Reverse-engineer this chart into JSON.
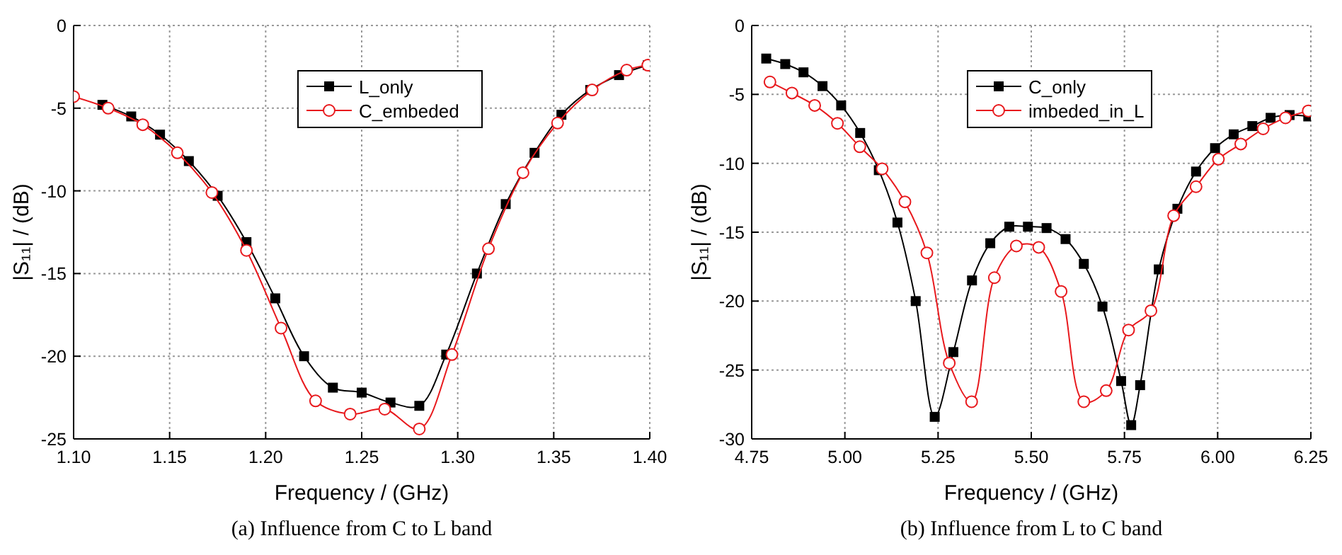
{
  "chart_data": [
    {
      "type": "line",
      "xlabel": "Frequency / (GHz)",
      "ylabel": "|S₁₁| / (dB)",
      "annotations": [
        "(a) Influence from C to L band"
      ],
      "xlim": [
        1.1,
        1.4
      ],
      "ylim": [
        -25,
        0
      ],
      "xticks": [
        {
          "value": 1.1,
          "label": "1.10"
        },
        {
          "value": 1.15,
          "label": "1.15"
        },
        {
          "value": 1.2,
          "label": "1.20"
        },
        {
          "value": 1.25,
          "label": "1.25"
        },
        {
          "value": 1.3,
          "label": "1.30"
        },
        {
          "value": 1.35,
          "label": "1.35"
        },
        {
          "value": 1.4,
          "label": "1.40"
        }
      ],
      "yticks": [
        -25,
        -20,
        -15,
        -10,
        -5,
        0
      ],
      "grid": true,
      "legend": "top",
      "line_style": "solid",
      "series": [
        {
          "name": "L_only",
          "color": "#000000",
          "marker": "square",
          "x": [
            1.115,
            1.13,
            1.145,
            1.16,
            1.175,
            1.19,
            1.205,
            1.22,
            1.235,
            1.25,
            1.265,
            1.28,
            1.294,
            1.31,
            1.325,
            1.34,
            1.354,
            1.369,
            1.384,
            1.399
          ],
          "values": [
            -4.8,
            -5.5,
            -6.6,
            -8.2,
            -10.3,
            -13.1,
            -16.5,
            -20.0,
            -21.9,
            -22.2,
            -22.8,
            -23.0,
            -19.9,
            -15.0,
            -10.8,
            -7.7,
            -5.4,
            -3.9,
            -3.0,
            -2.4
          ]
        },
        {
          "name": "C_embeded",
          "color": "#e8191d",
          "marker": "circle",
          "x": [
            1.1,
            1.118,
            1.136,
            1.154,
            1.172,
            1.19,
            1.208,
            1.226,
            1.244,
            1.262,
            1.28,
            1.297,
            1.316,
            1.334,
            1.352,
            1.37,
            1.388,
            1.399
          ],
          "values": [
            -4.3,
            -5.0,
            -6.0,
            -7.7,
            -10.1,
            -13.6,
            -18.3,
            -22.7,
            -23.5,
            -23.2,
            -24.4,
            -19.9,
            -13.5,
            -8.9,
            -5.9,
            -3.9,
            -2.7,
            -2.4
          ]
        }
      ]
    },
    {
      "type": "line",
      "xlabel": "Frequency / (GHz)",
      "ylabel": "|S₁₁| / (dB)",
      "annotations": [
        "(b) Influence from L to C band"
      ],
      "xlim": [
        4.75,
        6.25
      ],
      "ylim": [
        -30,
        0
      ],
      "xticks": [
        {
          "value": 4.75,
          "label": "4.75"
        },
        {
          "value": 5,
          "label": "5.00"
        },
        {
          "value": 5.25,
          "label": "5.25"
        },
        {
          "value": 5.5,
          "label": "5.50"
        },
        {
          "value": 5.75,
          "label": "5.75"
        },
        {
          "value": 6,
          "label": "6.00"
        },
        {
          "value": 6.25,
          "label": "6.25"
        }
      ],
      "yticks": [
        -30,
        -25,
        -20,
        -15,
        -10,
        -5,
        0
      ],
      "grid": true,
      "legend": "top",
      "line_style": "solid",
      "series": [
        {
          "name": "C_only",
          "color": "#000000",
          "marker": "square",
          "x": [
            4.789,
            4.84,
            4.889,
            4.94,
            4.99,
            5.041,
            5.091,
            5.141,
            5.19,
            5.241,
            5.291,
            5.341,
            5.39,
            5.441,
            5.491,
            5.541,
            5.592,
            5.641,
            5.691,
            5.741,
            5.768,
            5.792,
            5.842,
            5.892,
            5.942,
            5.993,
            6.043,
            6.093,
            6.142,
            6.193,
            6.243
          ],
          "values": [
            -2.4,
            -2.8,
            -3.4,
            -4.4,
            -5.8,
            -7.8,
            -10.5,
            -14.3,
            -20.0,
            -28.4,
            -23.7,
            -18.5,
            -15.8,
            -14.6,
            -14.6,
            -14.7,
            -15.5,
            -17.3,
            -20.4,
            -25.8,
            -29.0,
            -26.1,
            -17.7,
            -13.3,
            -10.6,
            -8.9,
            -7.9,
            -7.3,
            -6.7,
            -6.5,
            -6.6
          ]
        },
        {
          "name": "imbeded_in_L",
          "color": "#e8191d",
          "marker": "circle",
          "x": [
            4.799,
            4.858,
            4.919,
            4.98,
            5.04,
            5.1,
            5.161,
            5.22,
            5.28,
            5.34,
            5.401,
            5.46,
            5.52,
            5.58,
            5.641,
            5.701,
            5.761,
            5.821,
            5.882,
            5.942,
            6.002,
            6.062,
            6.122,
            6.182,
            6.243
          ],
          "values": [
            -4.1,
            -4.9,
            -5.8,
            -7.1,
            -8.8,
            -10.4,
            -12.8,
            -16.5,
            -24.5,
            -27.3,
            -18.3,
            -16.0,
            -16.1,
            -19.3,
            -27.3,
            -26.5,
            -22.1,
            -20.7,
            -13.8,
            -11.7,
            -9.7,
            -8.6,
            -7.5,
            -6.7,
            -6.2
          ]
        }
      ]
    }
  ]
}
